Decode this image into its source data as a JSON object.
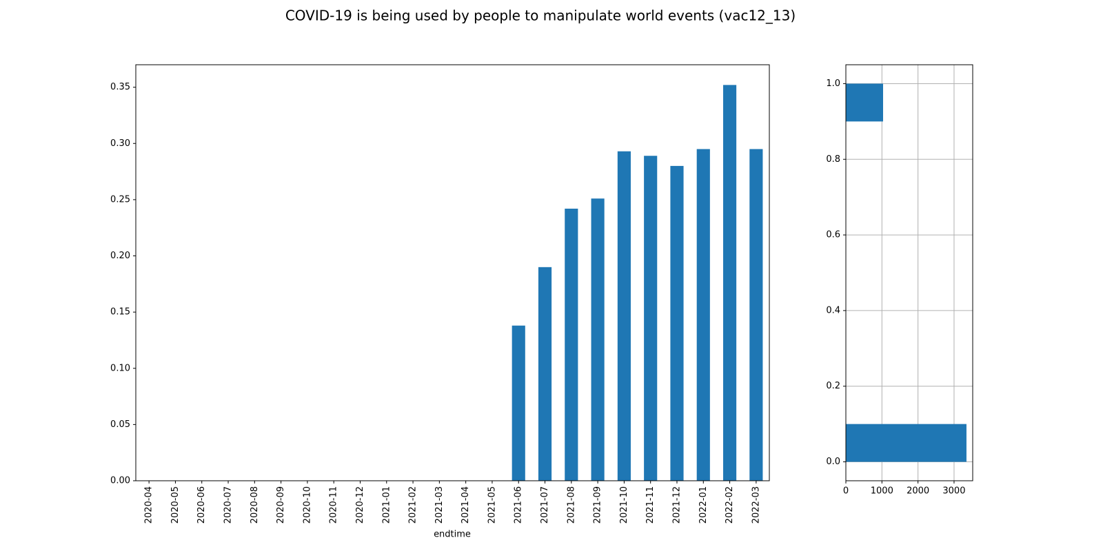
{
  "chart_data": [
    {
      "type": "bar",
      "title": "COVID-19 is being used by people to manipulate world events (vac12_13)",
      "x_label": "endtime",
      "categories": [
        "2020-04",
        "2020-05",
        "2020-06",
        "2020-07",
        "2020-08",
        "2020-09",
        "2020-10",
        "2020-11",
        "2020-12",
        "2021-01",
        "2021-02",
        "2021-03",
        "2021-04",
        "2021-05",
        "2021-06",
        "2021-07",
        "2021-08",
        "2021-09",
        "2021-10",
        "2021-11",
        "2021-12",
        "2022-01",
        "2022-02",
        "2022-03"
      ],
      "values": [
        0,
        0,
        0,
        0,
        0,
        0,
        0,
        0,
        0,
        0,
        0,
        0,
        0,
        0,
        0.138,
        0.19,
        0.242,
        0.251,
        0.293,
        0.289,
        0.28,
        0.295,
        0.352,
        0.295
      ],
      "color": "#1f77b4",
      "ylim": [
        0,
        0.37
      ],
      "yticks": [
        {
          "value": 0,
          "label": "0.00"
        },
        {
          "value": 0.05,
          "label": "0.05"
        },
        {
          "value": 0.1,
          "label": "0.10"
        },
        {
          "value": 0.15,
          "label": "0.15"
        },
        {
          "value": 0.2,
          "label": "0.20"
        },
        {
          "value": 0.25,
          "label": "0.25"
        },
        {
          "value": 0.3,
          "label": "0.30"
        },
        {
          "value": 0.35,
          "label": "0.35"
        }
      ],
      "grid": false
    },
    {
      "type": "histogram",
      "orientation": "horizontal",
      "bins": [
        0,
        0.1,
        0.2,
        0.3,
        0.4,
        0.5,
        0.6,
        0.7,
        0.8,
        0.9,
        1.0
      ],
      "values": [
        3344,
        0,
        0,
        0,
        0,
        0,
        0,
        0,
        0,
        1032
      ],
      "color": "#1f77b4",
      "xlim": [
        0,
        3517
      ],
      "xticks": [
        0,
        1000,
        2000,
        3000
      ],
      "ylim": [
        -0.05,
        1.05
      ],
      "yticks": [
        {
          "value": 0,
          "label": "0.0"
        },
        0.2,
        0.4,
        0.6,
        0.8,
        {
          "value": 1,
          "label": "1.0"
        }
      ],
      "grid": true
    }
  ]
}
